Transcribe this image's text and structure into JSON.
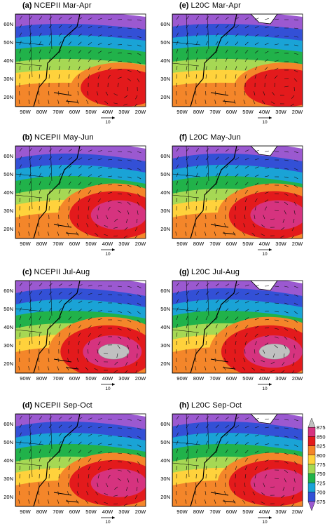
{
  "panels": [
    {
      "letter": "(a)",
      "dataset": "NCEPII",
      "months": "Mar-Apr",
      "core": [
        65,
        38
      ],
      "rx": 85,
      "ry": 40,
      "maxColor": "#e31a1c"
    },
    {
      "letter": "(e)",
      "dataset": "L20C",
      "months": "Mar-Apr",
      "core": [
        70,
        38
      ],
      "rx": 85,
      "ry": 40,
      "maxColor": "#e31a1c"
    },
    {
      "letter": "(b)",
      "dataset": "NCEPII",
      "months": "May-Jun",
      "core": [
        60,
        33
      ],
      "rx": 95,
      "ry": 50,
      "maxColor": "#d6337f"
    },
    {
      "letter": "(f)",
      "dataset": "L20C",
      "months": "May-Jun",
      "core": [
        62,
        33
      ],
      "rx": 95,
      "ry": 50,
      "maxColor": "#d6337f"
    },
    {
      "letter": "(c)",
      "dataset": "NCEPII",
      "months": "Jul-Aug",
      "core": [
        55,
        35
      ],
      "rx": 100,
      "ry": 55,
      "maxColor": "#c0c0c0"
    },
    {
      "letter": "(g)",
      "dataset": "L20C",
      "months": "Jul-Aug",
      "core": [
        58,
        35
      ],
      "rx": 100,
      "ry": 55,
      "maxColor": "#c0c0c0"
    },
    {
      "letter": "(d)",
      "dataset": "NCEPII",
      "months": "Sep-Oct",
      "core": [
        60,
        33
      ],
      "rx": 95,
      "ry": 48,
      "maxColor": "#d6337f"
    },
    {
      "letter": "(h)",
      "dataset": "L20C",
      "months": "Sep-Oct",
      "core": [
        62,
        33
      ],
      "rx": 95,
      "ry": 48,
      "maxColor": "#d6337f"
    }
  ],
  "lat_ticks": [
    "20N",
    "30N",
    "40N",
    "50N",
    "60N"
  ],
  "lon_ticks": [
    "90W",
    "80W",
    "70W",
    "60W",
    "50W",
    "40W",
    "30W",
    "20W"
  ],
  "vector_ref": "10",
  "colorbar": {
    "labels": [
      "875",
      "850",
      "825",
      "800",
      "775",
      "750",
      "725",
      "700",
      "675"
    ],
    "colors": [
      "#c0c0c0",
      "#d6337f",
      "#e31a1c",
      "#f4862a",
      "#ffd23c",
      "#a6d854",
      "#21b24a",
      "#1aa3d6",
      "#3350d6",
      "#9b59d0"
    ]
  }
}
